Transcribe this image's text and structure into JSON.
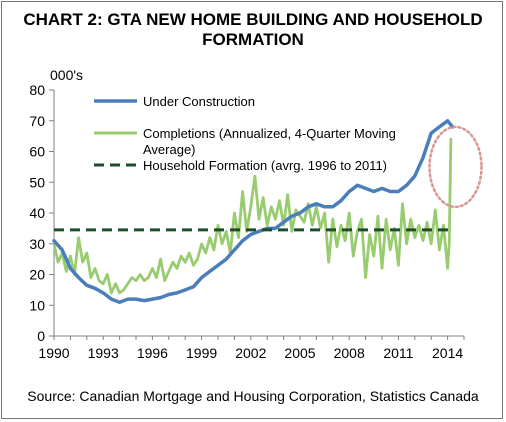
{
  "chart_data": {
    "type": "line",
    "title_line1": "CHART 2: GTA NEW HOME BUILDING AND HOUSEHOLD",
    "title_line2": "FORMATION",
    "ylabel": "000's",
    "xlabel": "",
    "ylim": [
      0,
      80
    ],
    "yticks": [
      "0",
      "10",
      "20",
      "30",
      "40",
      "50",
      "60",
      "70",
      "80"
    ],
    "xlim": [
      1990,
      2015
    ],
    "xticks": [
      "1990",
      "1993",
      "1996",
      "1999",
      "2002",
      "2005",
      "2008",
      "2011",
      "2014"
    ],
    "grid": false,
    "legend_position": "top-left",
    "source": "Source: Canadian Mortgage and Housing Corporation, Statistics Canada",
    "series": [
      {
        "name": "Under Construction",
        "color": "#4a7ebb",
        "style": "solid",
        "x": [
          1990,
          1990.5,
          1991,
          1991.5,
          1992,
          1992.5,
          1993,
          1993.5,
          1994,
          1994.5,
          1995,
          1995.5,
          1996,
          1996.5,
          1997,
          1997.5,
          1998,
          1998.5,
          1999,
          1999.5,
          2000,
          2000.5,
          2001,
          2001.5,
          2002,
          2002.5,
          2003,
          2003.5,
          2004,
          2004.5,
          2005,
          2005.5,
          2006,
          2006.5,
          2007,
          2007.5,
          2008,
          2008.5,
          2009,
          2009.5,
          2010,
          2010.5,
          2011,
          2011.5,
          2012,
          2012.5,
          2013,
          2013.5,
          2014,
          2014.3
        ],
        "values": [
          31,
          28,
          22,
          19,
          16.5,
          15.5,
          14,
          12,
          11,
          12,
          12,
          11.5,
          12,
          12.5,
          13.5,
          14,
          15,
          16,
          19,
          21,
          23,
          25,
          28,
          31,
          33,
          34,
          35,
          35,
          37,
          39,
          40,
          42,
          43,
          42,
          42,
          44,
          47,
          49,
          48,
          47,
          48,
          47,
          47,
          49,
          52,
          58,
          66,
          68,
          70,
          68
        ]
      },
      {
        "name": "Completions (Annualized, 4-Quarter Moving Average)",
        "color": "#99cc6f",
        "style": "solid",
        "x": [
          1990,
          1990.25,
          1990.5,
          1990.75,
          1991,
          1991.25,
          1991.5,
          1991.75,
          1992,
          1992.25,
          1992.5,
          1992.75,
          1993,
          1993.25,
          1993.5,
          1993.75,
          1994,
          1994.25,
          1994.5,
          1994.75,
          1995,
          1995.25,
          1995.5,
          1995.75,
          1996,
          1996.25,
          1996.5,
          1996.75,
          1997,
          1997.25,
          1997.5,
          1997.75,
          1998,
          1998.25,
          1998.5,
          1998.75,
          1999,
          1999.25,
          1999.5,
          1999.75,
          2000,
          2000.25,
          2000.5,
          2000.75,
          2001,
          2001.25,
          2001.5,
          2001.75,
          2002,
          2002.25,
          2002.5,
          2002.75,
          2003,
          2003.25,
          2003.5,
          2003.75,
          2004,
          2004.25,
          2004.5,
          2004.75,
          2005,
          2005.25,
          2005.5,
          2005.75,
          2006,
          2006.25,
          2006.5,
          2006.75,
          2007,
          2007.25,
          2007.5,
          2007.75,
          2008,
          2008.25,
          2008.5,
          2008.75,
          2009,
          2009.25,
          2009.5,
          2009.75,
          2010,
          2010.25,
          2010.5,
          2010.75,
          2011,
          2011.25,
          2011.5,
          2011.75,
          2012,
          2012.25,
          2012.5,
          2012.75,
          2013,
          2013.25,
          2013.5,
          2013.75,
          2014,
          2014.1,
          2014.2
        ],
        "values": [
          30,
          24,
          27,
          21,
          26,
          20,
          32,
          24,
          27,
          19,
          22,
          18,
          17,
          20,
          14,
          17,
          14,
          15,
          17,
          19,
          18,
          20,
          18,
          19,
          22,
          19,
          25,
          18,
          21,
          24,
          22,
          26,
          24,
          27,
          23,
          25,
          30,
          27,
          32,
          28,
          36,
          30,
          34,
          27,
          40,
          32,
          47,
          34,
          42,
          52,
          38,
          45,
          36,
          42,
          38,
          44,
          36,
          46,
          34,
          41,
          39,
          37,
          43,
          36,
          42,
          35,
          40,
          24,
          38,
          29,
          36,
          31,
          40,
          26,
          34,
          38,
          19,
          33,
          26,
          39,
          22,
          38,
          28,
          35,
          23,
          43,
          30,
          38,
          32,
          36,
          31,
          37,
          30,
          41,
          28,
          36,
          22,
          30,
          64
        ]
      },
      {
        "name": "Household Formation (avrg. 1996 to 2011)",
        "color": "#1e4d2b",
        "style": "dashed",
        "x": [
          1990,
          2014.3
        ],
        "values": [
          34.5,
          34.5
        ]
      }
    ],
    "annotation": {
      "shape": "dotted-ellipse",
      "color": "#d99694",
      "center_x": 2014.3,
      "center_y": 55
    }
  }
}
